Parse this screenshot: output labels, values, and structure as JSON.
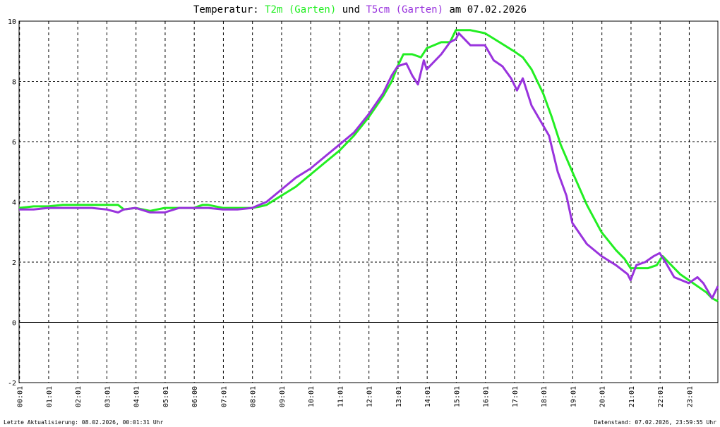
{
  "title": {
    "prefix": "Temperatur: ",
    "series1": "T2m (Garten)",
    "connector": " und ",
    "series2": "T5cm (Garten)",
    "suffix": " am 07.02.2026"
  },
  "footer": {
    "left": "Letzte Aktualisierung: 08.02.2026, 00:01:31 Uhr",
    "right": "Datenstand: 07.02.2026, 23:59:55 Uhr"
  },
  "colors": {
    "t2m": "#22ee22",
    "t5cm": "#9933dd",
    "grid": "#000000",
    "background": "#ffffff"
  },
  "chart_data": {
    "type": "line",
    "ylim": [
      -2,
      10
    ],
    "yticks": [
      "-2",
      "0",
      "2",
      "4",
      "6",
      "8",
      "10"
    ],
    "xlim": [
      0,
      24
    ],
    "xticks": [
      "00:01",
      "01:01",
      "02:01",
      "03:01",
      "04:01",
      "05:01",
      "06:00",
      "07:01",
      "08:01",
      "09:01",
      "10:01",
      "11:01",
      "12:01",
      "13:01",
      "14:01",
      "15:01",
      "16:01",
      "17:01",
      "18:01",
      "19:01",
      "20:01",
      "21:01",
      "22:01",
      "23:01"
    ],
    "grid": "dashed",
    "legend": "in title",
    "series": [
      {
        "name": "T2m (Garten)",
        "x": [
          0,
          0.5,
          1.0,
          1.5,
          2.0,
          2.5,
          3.0,
          3.4,
          3.6,
          4.0,
          4.5,
          5.0,
          5.5,
          6.0,
          6.3,
          6.5,
          7.0,
          7.5,
          8.0,
          8.3,
          8.5,
          9.0,
          9.5,
          10.0,
          10.5,
          11.0,
          11.5,
          12.0,
          12.5,
          12.8,
          13.0,
          13.2,
          13.5,
          13.8,
          14.0,
          14.5,
          14.8,
          15.0,
          15.5,
          16.0,
          16.5,
          17.0,
          17.3,
          17.6,
          18.0,
          18.3,
          18.6,
          19.0,
          19.5,
          20.0,
          20.5,
          20.8,
          21.0,
          21.3,
          21.6,
          21.9,
          22.1,
          22.4,
          22.7,
          23.0,
          23.3,
          23.6,
          23.8,
          24.0
        ],
        "y": [
          3.8,
          3.85,
          3.85,
          3.9,
          3.9,
          3.9,
          3.9,
          3.9,
          3.75,
          3.8,
          3.7,
          3.8,
          3.8,
          3.8,
          3.9,
          3.9,
          3.8,
          3.8,
          3.8,
          3.85,
          3.9,
          4.2,
          4.5,
          4.9,
          5.3,
          5.7,
          6.2,
          6.8,
          7.5,
          8.0,
          8.5,
          8.9,
          8.9,
          8.8,
          9.1,
          9.3,
          9.3,
          9.7,
          9.7,
          9.6,
          9.3,
          9.0,
          8.8,
          8.4,
          7.6,
          6.8,
          5.9,
          5.0,
          3.9,
          3.0,
          2.4,
          2.1,
          1.8,
          1.8,
          1.8,
          1.9,
          2.2,
          1.9,
          1.6,
          1.4,
          1.2,
          1.0,
          0.8,
          0.7
        ]
      },
      {
        "name": "T5cm (Garten)",
        "x": [
          0,
          0.5,
          1.0,
          1.5,
          2.0,
          2.5,
          3.0,
          3.4,
          3.6,
          4.0,
          4.5,
          5.0,
          5.5,
          6.0,
          6.5,
          7.0,
          7.5,
          8.0,
          8.5,
          9.0,
          9.5,
          10.0,
          10.5,
          11.0,
          11.5,
          12.0,
          12.5,
          12.8,
          13.0,
          13.3,
          13.5,
          13.7,
          13.9,
          14.0,
          14.5,
          14.8,
          15.0,
          15.1,
          15.5,
          16.0,
          16.3,
          16.6,
          16.9,
          17.1,
          17.3,
          17.6,
          17.9,
          18.2,
          18.5,
          18.8,
          19.0,
          19.5,
          20.0,
          20.5,
          20.9,
          21.0,
          21.2,
          21.5,
          21.8,
          22.0,
          22.2,
          22.5,
          23.0,
          23.3,
          23.5,
          23.8,
          24.0
        ],
        "y": [
          3.75,
          3.75,
          3.8,
          3.8,
          3.8,
          3.8,
          3.75,
          3.65,
          3.75,
          3.8,
          3.65,
          3.65,
          3.8,
          3.8,
          3.8,
          3.75,
          3.75,
          3.8,
          4.0,
          4.4,
          4.8,
          5.1,
          5.5,
          5.9,
          6.3,
          6.9,
          7.6,
          8.2,
          8.5,
          8.6,
          8.2,
          7.9,
          8.7,
          8.4,
          8.9,
          9.3,
          9.4,
          9.6,
          9.2,
          9.2,
          8.7,
          8.5,
          8.1,
          7.7,
          8.1,
          7.2,
          6.7,
          6.2,
          5.0,
          4.2,
          3.3,
          2.6,
          2.2,
          1.9,
          1.6,
          1.4,
          1.9,
          2.0,
          2.2,
          2.3,
          2.0,
          1.5,
          1.3,
          1.5,
          1.3,
          0.8,
          1.2
        ]
      }
    ]
  }
}
